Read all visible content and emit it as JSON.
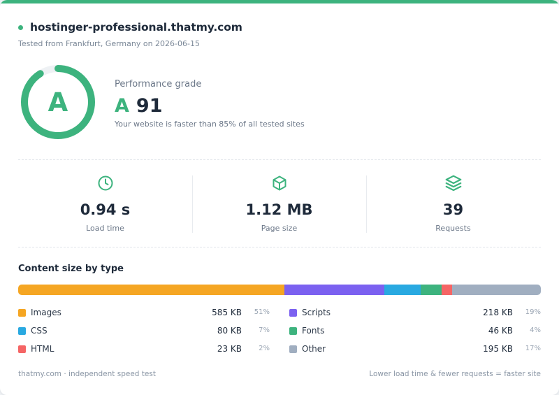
{
  "colors": {
    "accent": "#3db37e",
    "track": "#eef1f4"
  },
  "header": {
    "site": "hostinger-professional.thatmy.com",
    "tested": "Tested from Frankfurt, Germany on 2026-06-15"
  },
  "grade": {
    "letter": "A",
    "label": "Performance grade",
    "score": "91",
    "score_fraction": 0.91,
    "description": "Your website is faster than 85% of all tested sites"
  },
  "stats": [
    {
      "icon": "clock-icon",
      "value": "0.94 s",
      "label": "Load time"
    },
    {
      "icon": "box-icon",
      "value": "1.12 MB",
      "label": "Page size"
    },
    {
      "icon": "layers-icon",
      "value": "39",
      "label": "Requests"
    }
  ],
  "content": {
    "title": "Content size by type",
    "items": [
      {
        "name": "Images",
        "size": "585 KB",
        "percent": "51%",
        "share": 51,
        "color": "#f5a623"
      },
      {
        "name": "Scripts",
        "size": "218 KB",
        "percent": "19%",
        "share": 19,
        "color": "#7b61f0"
      },
      {
        "name": "CSS",
        "size": "80 KB",
        "percent": "7%",
        "share": 7,
        "color": "#29a9e1"
      },
      {
        "name": "Fonts",
        "size": "46 KB",
        "percent": "4%",
        "share": 4,
        "color": "#3db37e"
      },
      {
        "name": "HTML",
        "size": "23 KB",
        "percent": "2%",
        "share": 2,
        "color": "#f56565"
      },
      {
        "name": "Other",
        "size": "195 KB",
        "percent": "17%",
        "share": 17,
        "color": "#a0aec0"
      }
    ]
  },
  "footer": {
    "left": "thatmy.com · independent speed test",
    "right": "Lower load time & fewer requests = faster site"
  }
}
